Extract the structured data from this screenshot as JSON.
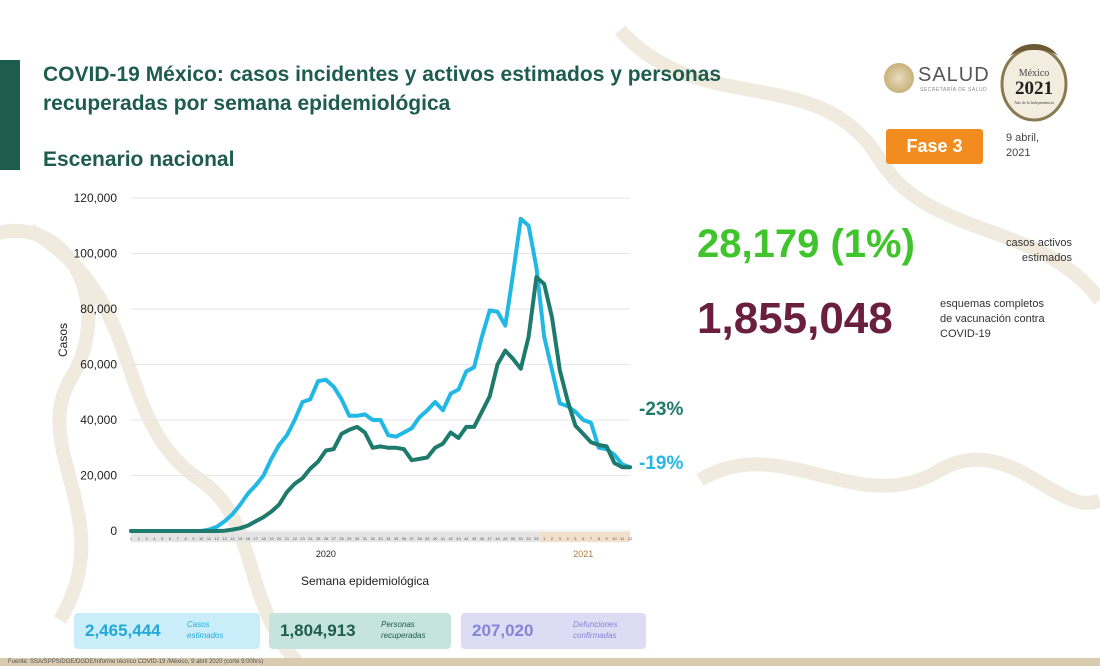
{
  "header": {
    "title": "COVID-19 México: casos incidentes y activos estimados y personas recuperadas por semana epidemiológica",
    "subtitle": "Escenario nacional",
    "phase_label": "Fase 3",
    "date": "9 abril,\n2021",
    "salud_logo": "SALUD",
    "salud_logo_sub": "SECRETARÍA DE SALUD",
    "logo_2021_year": "2021",
    "logo_2021_top": "México",
    "logo_2021_sub": "Año de la Independencia"
  },
  "stats": {
    "active_value": "28,179 (1%)",
    "active_label": "casos activos\nestimados",
    "vaccination_value": "1,855,048",
    "vaccination_label": "esquemas completos\nde vacunación contra\nCOVID-19",
    "active_change": "-23%",
    "cases_change": "-19%"
  },
  "cards": {
    "cases_value": "2,465,444",
    "cases_label": "Casos\nestimados",
    "recovered_value": "1,804,913",
    "recovered_label": "Personas\nrecuperadas",
    "deaths_value": "207,020",
    "deaths_label": "Defunciones\nconfirmadas"
  },
  "footer": {
    "source": "Fuente: SSA/SPPS/DGE/DGDE/Informe técnico COVID-19 /México, 9 abril 2020 (corte 9:00hrs)"
  },
  "colors": {
    "cases": "#22b8e5",
    "active": "#1e7a6c",
    "title": "#1e5c4f",
    "active_big": "#3fc42b",
    "vacc_big": "#6b1f3e",
    "phase": "#f28c1e"
  },
  "chart_data": {
    "type": "line",
    "title": "",
    "xlabel": "Semana epidemiológica",
    "ylabel": "Casos",
    "ylim": [
      0,
      120000
    ],
    "yticks": [
      0,
      20000,
      40000,
      60000,
      80000,
      100000,
      120000
    ],
    "ytick_labels": [
      "0",
      "20,000",
      "40,000",
      "60,000",
      "80,000",
      "100,000",
      "120,000"
    ],
    "x": [
      "2020-1",
      "2020-2",
      "2020-3",
      "2020-4",
      "2020-5",
      "2020-6",
      "2020-7",
      "2020-8",
      "2020-9",
      "2020-10",
      "2020-11",
      "2020-12",
      "2020-13",
      "2020-14",
      "2020-15",
      "2020-16",
      "2020-17",
      "2020-18",
      "2020-19",
      "2020-20",
      "2020-21",
      "2020-22",
      "2020-23",
      "2020-24",
      "2020-25",
      "2020-26",
      "2020-27",
      "2020-28",
      "2020-29",
      "2020-30",
      "2020-31",
      "2020-32",
      "2020-33",
      "2020-34",
      "2020-35",
      "2020-36",
      "2020-37",
      "2020-38",
      "2020-39",
      "2020-40",
      "2020-41",
      "2020-42",
      "2020-43",
      "2020-44",
      "2020-45",
      "2020-46",
      "2020-47",
      "2020-48",
      "2020-49",
      "2020-50",
      "2020-51",
      "2020-52",
      "2020-53",
      "2021-1",
      "2021-2",
      "2021-3",
      "2021-4",
      "2021-5",
      "2021-6",
      "2021-7",
      "2021-8",
      "2021-9",
      "2021-10",
      "2021-11",
      "2021-12"
    ],
    "year_labels": [
      {
        "label": "2020",
        "at": "2020-26"
      },
      {
        "label": "2021",
        "at": "2021-6"
      }
    ],
    "series": [
      {
        "name": "",
        "color": "#22b8e5",
        "values": [
          0,
          0,
          0,
          0,
          0,
          0,
          0,
          0,
          0,
          0,
          500,
          1500,
          3500,
          6000,
          9500,
          13500,
          16500,
          20000,
          26000,
          31000,
          34500,
          40000,
          46500,
          47500,
          54000,
          54500,
          52000,
          47500,
          41500,
          41500,
          42000,
          40000,
          40000,
          34500,
          34000,
          35500,
          37000,
          41000,
          43500,
          46500,
          43500,
          49500,
          51000,
          57500,
          59000,
          70000,
          79500,
          79000,
          74000,
          92500,
          112500,
          110000,
          95000,
          70000,
          58000,
          46000,
          45000,
          43000,
          40000,
          39000,
          30000,
          29500,
          27500,
          24000,
          23000
        ]
      },
      {
        "name": "",
        "color": "#1e7a6c",
        "values": [
          0,
          0,
          0,
          0,
          0,
          0,
          0,
          0,
          0,
          0,
          0,
          0,
          100,
          500,
          1000,
          2000,
          3500,
          5000,
          7000,
          9500,
          14000,
          17000,
          19000,
          22500,
          25000,
          29000,
          29500,
          35000,
          36500,
          37500,
          35500,
          30000,
          30500,
          30000,
          30000,
          29500,
          25500,
          26000,
          26500,
          30000,
          31500,
          35500,
          33500,
          37500,
          37500,
          43000,
          48500,
          60000,
          65000,
          62000,
          58500,
          70000,
          91500,
          89000,
          77000,
          58000,
          47000,
          38000,
          35000,
          32000,
          31000,
          30500,
          24500,
          23000,
          23000
        ]
      }
    ]
  }
}
